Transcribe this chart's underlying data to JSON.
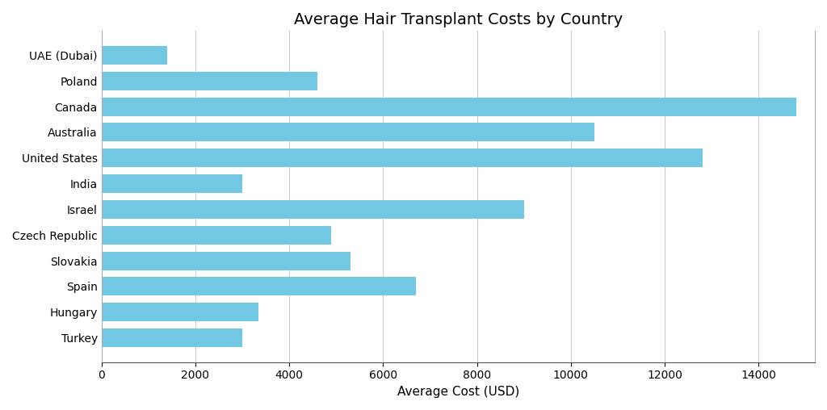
{
  "title": "Average Hair Transplant Costs by Country",
  "xlabel": "Average Cost (USD)",
  "countries": [
    "UAE (Dubai)",
    "Poland",
    "Canada",
    "Australia",
    "United States",
    "India",
    "Israel",
    "Czech Republic",
    "Slovakia",
    "Spain",
    "Hungary",
    "Turkey"
  ],
  "values": [
    1400,
    4600,
    14800,
    10500,
    12800,
    3000,
    9000,
    4900,
    5300,
    6700,
    3350,
    3000
  ],
  "bar_color": "#72C8E3",
  "background_color": "#ffffff",
  "grid_color": "#cccccc",
  "xlim": [
    0,
    15200
  ],
  "xticks": [
    0,
    2000,
    4000,
    6000,
    8000,
    10000,
    12000,
    14000
  ],
  "bar_height": 0.72,
  "title_fontsize": 14,
  "label_fontsize": 11,
  "tick_fontsize": 10
}
